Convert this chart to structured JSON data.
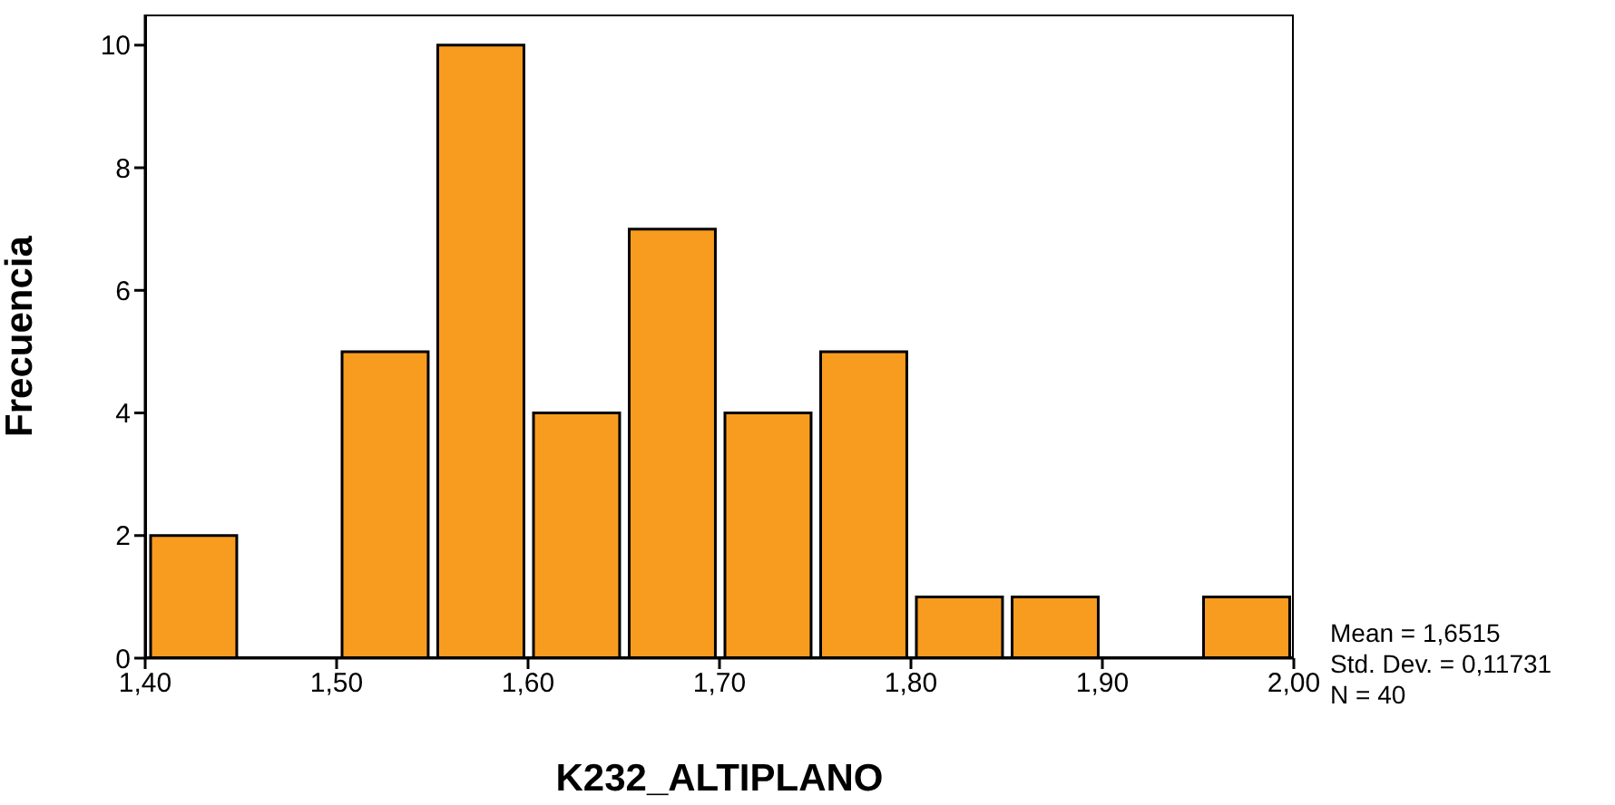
{
  "chart_data": {
    "type": "histogram",
    "xlabel": "K232_ALTIPLANO",
    "ylabel": "Frecuencia",
    "bins": [
      1.4,
      1.45,
      1.5,
      1.55,
      1.6,
      1.65,
      1.7,
      1.75,
      1.8,
      1.85,
      1.9,
      1.95,
      2.0
    ],
    "values": [
      2,
      0,
      5,
      10,
      4,
      7,
      4,
      5,
      1,
      1,
      0,
      1
    ],
    "color": "#f89c20",
    "xlim": [
      1.4,
      2.0
    ],
    "xticks": [
      {
        "value": 1.4,
        "label": "1,40"
      },
      {
        "value": 1.5,
        "label": "1,50"
      },
      {
        "value": 1.6,
        "label": "1,60"
      },
      {
        "value": 1.7,
        "label": "1,70"
      },
      {
        "value": 1.8,
        "label": "1,80"
      },
      {
        "value": 1.9,
        "label": "1,90"
      },
      {
        "value": 2.0,
        "label": "2,00"
      }
    ],
    "ylim": [
      0,
      10.5
    ],
    "yticks": [
      0,
      2,
      4,
      6,
      8,
      10
    ],
    "grid": false,
    "legend": false,
    "annotations": [
      "Mean = 1,6515",
      "Std. Dev. = 0,11731",
      "N = 40"
    ]
  }
}
